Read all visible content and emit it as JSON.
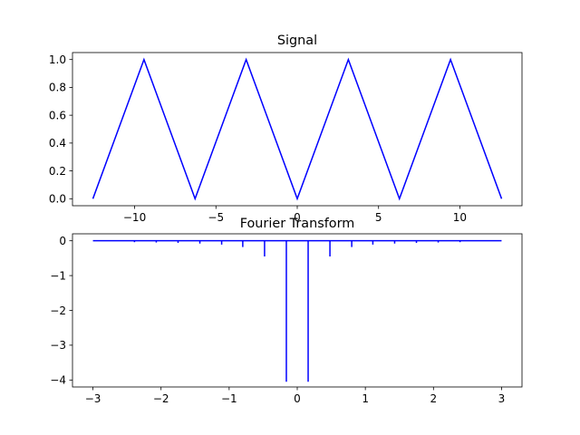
{
  "chart_data": [
    {
      "type": "line",
      "title": "Signal",
      "xlabel": "",
      "ylabel": "",
      "color": "#0000ff",
      "xlim": [
        -13.82,
        13.82
      ],
      "ylim": [
        -0.05,
        1.05
      ],
      "xticks": [
        -10,
        -5,
        0,
        5,
        10
      ],
      "xtick_labels": [
        "−10",
        "−5",
        "0",
        "5",
        "10"
      ],
      "yticks": [
        0.0,
        0.2,
        0.4,
        0.6,
        0.8,
        1.0
      ],
      "ytick_labels": [
        "0.0",
        "0.2",
        "0.4",
        "0.6",
        "0.8",
        "1.0"
      ],
      "grid": false,
      "series": [
        {
          "x": [
            -12.566,
            -9.425,
            -6.283,
            -3.142,
            0.0,
            3.142,
            6.283,
            9.425,
            12.566
          ],
          "values": [
            0.0,
            1.0,
            0.0,
            1.0,
            0.0,
            1.0,
            0.0,
            1.0,
            0.0
          ]
        }
      ]
    },
    {
      "type": "line",
      "title": "Fourier Transform",
      "xlabel": "",
      "ylabel": "",
      "color": "#0000ff",
      "xlim": [
        -3.3,
        3.3
      ],
      "ylim": [
        -4.2,
        0.2
      ],
      "xticks": [
        -3,
        -2,
        -1,
        0,
        1,
        2,
        3
      ],
      "xtick_labels": [
        "−3",
        "−2",
        "−1",
        "0",
        "1",
        "2",
        "3"
      ],
      "yticks": [
        0,
        -1,
        -2,
        -3,
        -4
      ],
      "ytick_labels": [
        "0",
        "−1",
        "−2",
        "−3",
        "−4"
      ],
      "grid": false,
      "baseline": {
        "x": [
          -3.0,
          3.0
        ],
        "y": 0.0
      },
      "stems": [
        {
          "x": -2.39,
          "y": -0.04
        },
        {
          "x": -2.07,
          "y": -0.05
        },
        {
          "x": -1.75,
          "y": -0.06
        },
        {
          "x": -1.43,
          "y": -0.08
        },
        {
          "x": -1.11,
          "y": -0.11
        },
        {
          "x": -0.8,
          "y": -0.18
        },
        {
          "x": -0.48,
          "y": -0.45
        },
        {
          "x": -0.16,
          "y": -4.05
        },
        {
          "x": 0.16,
          "y": -4.05
        },
        {
          "x": 0.48,
          "y": -0.45
        },
        {
          "x": 0.8,
          "y": -0.18
        },
        {
          "x": 1.11,
          "y": -0.11
        },
        {
          "x": 1.43,
          "y": -0.08
        },
        {
          "x": 1.75,
          "y": -0.06
        },
        {
          "x": 2.07,
          "y": -0.05
        },
        {
          "x": 2.39,
          "y": -0.04
        }
      ]
    }
  ]
}
